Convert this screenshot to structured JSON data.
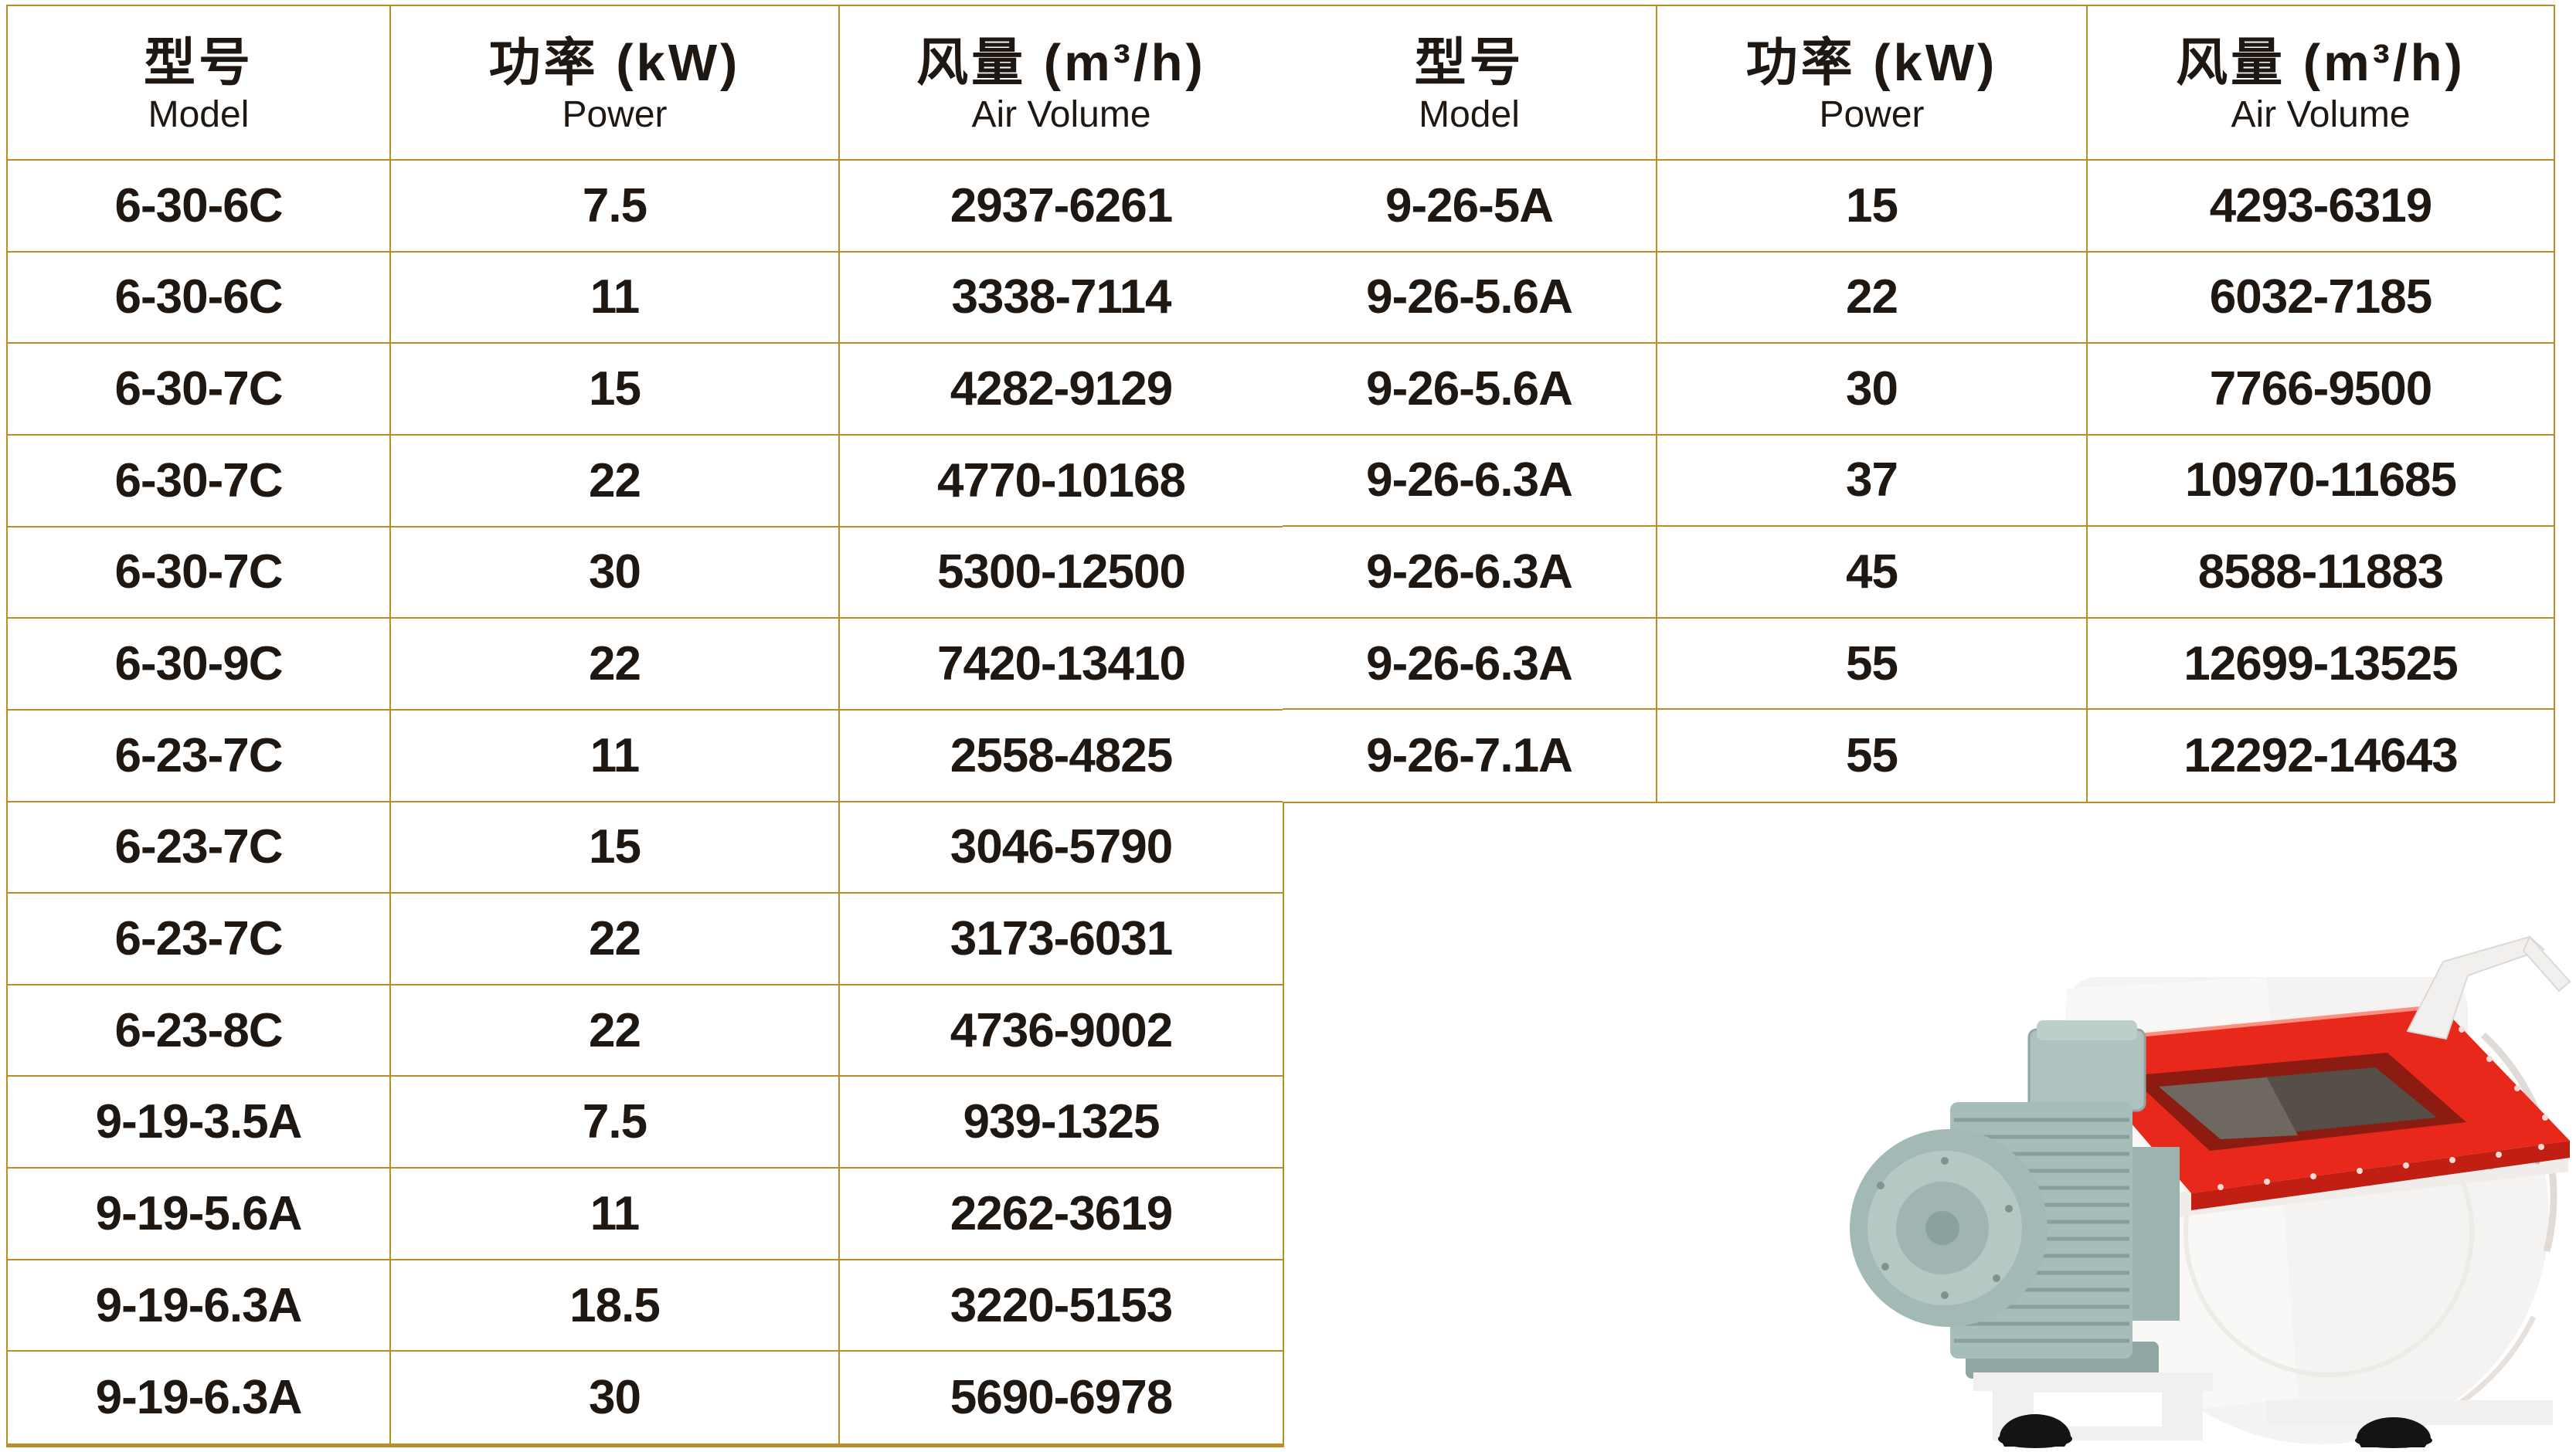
{
  "header": {
    "model_zh": "型号",
    "model_en": "Model",
    "power_zh": "功率 (kW)",
    "power_en": "Power",
    "volume_zh": "风量 (m³/h)",
    "volume_en": "Air Volume"
  },
  "tables": {
    "left": {
      "rows": [
        [
          "6-30-6C",
          "7.5",
          "2937-6261"
        ],
        [
          "6-30-6C",
          "11",
          "3338-7114"
        ],
        [
          "6-30-7C",
          "15",
          "4282-9129"
        ],
        [
          "6-30-7C",
          "22",
          "4770-10168"
        ],
        [
          "6-30-7C",
          "30",
          "5300-12500"
        ],
        [
          "6-30-9C",
          "22",
          "7420-13410"
        ],
        [
          "6-23-7C",
          "11",
          "2558-4825"
        ],
        [
          "6-23-7C",
          "15",
          "3046-5790"
        ],
        [
          "6-23-7C",
          "22",
          "3173-6031"
        ],
        [
          "6-23-8C",
          "22",
          "4736-9002"
        ],
        [
          "9-19-3.5A",
          "7.5",
          "939-1325"
        ],
        [
          "9-19-5.6A",
          "11",
          "2262-3619"
        ],
        [
          "9-19-6.3A",
          "18.5",
          "3220-5153"
        ],
        [
          "9-19-6.3A",
          "30",
          "5690-6978"
        ]
      ]
    },
    "right": {
      "rows": [
        [
          "9-26-5A",
          "15",
          "4293-6319"
        ],
        [
          "9-26-5.6A",
          "22",
          "6032-7185"
        ],
        [
          "9-26-5.6A",
          "30",
          "7766-9500"
        ],
        [
          "9-26-6.3A",
          "37",
          "10970-11685"
        ],
        [
          "9-26-6.3A",
          "45",
          "8588-11883"
        ],
        [
          "9-26-6.3A",
          "55",
          "12699-13525"
        ],
        [
          "9-26-7.1A",
          "55",
          "12292-14643"
        ]
      ]
    }
  },
  "colors": {
    "table_border": "#bd8c26",
    "text": "#1f1712",
    "inlet_red": "#e8281b",
    "motor_teal": "#a7bdb9",
    "housing_white": "#f5f3f1",
    "wheel_black": "#141414"
  },
  "product_image": {
    "description": "White centrifugal blower fan with red square inlet flange, teal finned motor, white pedestal stand and black caster wheels"
  }
}
